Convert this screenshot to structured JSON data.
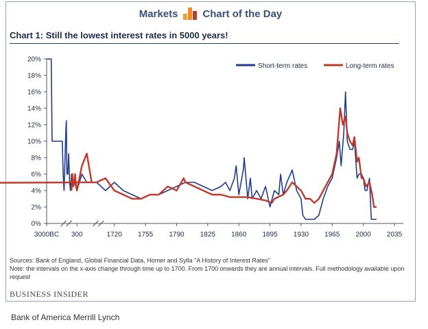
{
  "header": {
    "left": "Markets",
    "right": "Chart of the Day"
  },
  "colors": {
    "short": "#1f3d8c",
    "long": "#c0392b",
    "axis": "#555555",
    "logo1": "#e8a23b",
    "logo2": "#f08a2a",
    "logo3": "#c0392b"
  },
  "icons": {
    "logo": "bar-logo-icon",
    "axis_break": "axis-break-icon"
  },
  "chart_data": {
    "type": "line",
    "title": "Chart 1:  Still the lowest interest rates in 5000 years!",
    "xlabel": "",
    "ylabel": "",
    "ylim": [
      0,
      20
    ],
    "y_ticks": [
      "0%",
      "2%",
      "4%",
      "6%",
      "8%",
      "10%",
      "12%",
      "14%",
      "16%",
      "18%",
      "20%"
    ],
    "x_ticks": [
      "3000BC",
      "300",
      "1720",
      "1755",
      "1790",
      "1825",
      "1860",
      "1895",
      "1930",
      "1965",
      "2000",
      "2035"
    ],
    "legend_position": "top-right",
    "series": [
      {
        "name": "Short-term rates",
        "points": [
          [
            -3000,
            20
          ],
          [
            -2500,
            20
          ],
          [
            -2400,
            10
          ],
          [
            -2000,
            10
          ],
          [
            -1700,
            10
          ],
          [
            -1300,
            10
          ],
          [
            -1200,
            6
          ],
          [
            -1100,
            4
          ],
          [
            -1000,
            8
          ],
          [
            -900,
            11.5
          ],
          [
            -860,
            12.5
          ],
          [
            -800,
            6
          ],
          [
            -700,
            6
          ],
          [
            -600,
            8.5
          ],
          [
            -500,
            5
          ],
          [
            -400,
            4
          ],
          [
            -300,
            6
          ],
          [
            -200,
            5
          ],
          [
            0,
            5
          ],
          [
            200,
            4.5
          ],
          [
            300,
            4
          ],
          [
            400,
            6
          ],
          [
            500,
            5
          ],
          [
            600,
            5
          ],
          [
            700,
            4.5
          ],
          [
            1700,
            5
          ],
          [
            1710,
            4
          ],
          [
            1720,
            5
          ],
          [
            1730,
            4
          ],
          [
            1740,
            3.5
          ],
          [
            1750,
            3
          ],
          [
            1760,
            3.5
          ],
          [
            1770,
            3.5
          ],
          [
            1780,
            4
          ],
          [
            1790,
            4.5
          ],
          [
            1800,
            5
          ],
          [
            1810,
            5
          ],
          [
            1820,
            4.5
          ],
          [
            1830,
            4
          ],
          [
            1840,
            4.5
          ],
          [
            1845,
            5
          ],
          [
            1850,
            4
          ],
          [
            1855,
            5.5
          ],
          [
            1857,
            7
          ],
          [
            1860,
            3.5
          ],
          [
            1865,
            6.5
          ],
          [
            1866,
            8
          ],
          [
            1870,
            3
          ],
          [
            1873,
            5.5
          ],
          [
            1875,
            3
          ],
          [
            1880,
            4
          ],
          [
            1885,
            3
          ],
          [
            1890,
            4.5
          ],
          [
            1895,
            2
          ],
          [
            1900,
            4
          ],
          [
            1905,
            3.5
          ],
          [
            1907,
            6
          ],
          [
            1910,
            3.5
          ],
          [
            1914,
            5
          ],
          [
            1920,
            6.5
          ],
          [
            1925,
            4
          ],
          [
            1930,
            3
          ],
          [
            1932,
            1
          ],
          [
            1935,
            0.5
          ],
          [
            1940,
            0.5
          ],
          [
            1945,
            0.5
          ],
          [
            1950,
            1
          ],
          [
            1955,
            3
          ],
          [
            1960,
            4.5
          ],
          [
            1965,
            5.5
          ],
          [
            1970,
            8
          ],
          [
            1973,
            10
          ],
          [
            1975,
            7
          ],
          [
            1978,
            11
          ],
          [
            1980,
            16
          ],
          [
            1982,
            10
          ],
          [
            1985,
            9
          ],
          [
            1988,
            9
          ],
          [
            1990,
            10
          ],
          [
            1993,
            5.5
          ],
          [
            1995,
            6
          ],
          [
            1998,
            6
          ],
          [
            2000,
            5.5
          ],
          [
            2002,
            4
          ],
          [
            2004,
            4
          ],
          [
            2007,
            5.5
          ],
          [
            2009,
            0.5
          ],
          [
            2012,
            0.5
          ],
          [
            2015,
            0.5
          ]
        ]
      },
      {
        "name": "Long-term rates",
        "points": [
          [
            -300,
            4
          ],
          [
            -200,
            6
          ],
          [
            -100,
            4.5
          ],
          [
            0,
            5
          ],
          [
            100,
            6
          ],
          [
            200,
            4.5
          ],
          [
            300,
            4
          ],
          [
            400,
            7
          ],
          [
            500,
            8.5
          ],
          [
            600,
            5
          ],
          [
            700,
            4.5
          ],
          [
            1700,
            5
          ],
          [
            1710,
            5.5
          ],
          [
            1720,
            4
          ],
          [
            1730,
            3.5
          ],
          [
            1740,
            3
          ],
          [
            1750,
            3
          ],
          [
            1760,
            3.5
          ],
          [
            1770,
            3.5
          ],
          [
            1780,
            4.5
          ],
          [
            1790,
            4
          ],
          [
            1798,
            5.5
          ],
          [
            1800,
            5
          ],
          [
            1810,
            4.5
          ],
          [
            1820,
            4
          ],
          [
            1830,
            3.5
          ],
          [
            1840,
            3.5
          ],
          [
            1850,
            3.2
          ],
          [
            1860,
            3.2
          ],
          [
            1870,
            3.2
          ],
          [
            1880,
            3
          ],
          [
            1890,
            2.8
          ],
          [
            1897,
            2.5
          ],
          [
            1900,
            3
          ],
          [
            1910,
            3.5
          ],
          [
            1914,
            4
          ],
          [
            1920,
            5
          ],
          [
            1925,
            4.5
          ],
          [
            1930,
            4
          ],
          [
            1935,
            3
          ],
          [
            1940,
            3
          ],
          [
            1945,
            2.5
          ],
          [
            1950,
            3
          ],
          [
            1955,
            4
          ],
          [
            1960,
            5
          ],
          [
            1965,
            6
          ],
          [
            1970,
            8.5
          ],
          [
            1974,
            14
          ],
          [
            1977,
            12
          ],
          [
            1980,
            13
          ],
          [
            1982,
            11
          ],
          [
            1985,
            10
          ],
          [
            1988,
            9.5
          ],
          [
            1990,
            10.5
          ],
          [
            1993,
            7.5
          ],
          [
            1995,
            8
          ],
          [
            1998,
            5.5
          ],
          [
            2000,
            5.5
          ],
          [
            2003,
            4.5
          ],
          [
            2007,
            5
          ],
          [
            2010,
            3.5
          ],
          [
            2012,
            2
          ],
          [
            2015,
            2
          ]
        ]
      }
    ]
  },
  "notes": {
    "sources": "Sources: Bank of England, Global Financial Data, Homer and Sylla \"A History of Interest Rates\"",
    "note": "Note: the intervals on the x-axis change through time up to 1700. From 1700 onwards they are annual intervals. Full methodology available upon request"
  },
  "footer": {
    "brand": "BUSINESS INSIDER",
    "caption": "Bank of America Merrill Lynch"
  }
}
